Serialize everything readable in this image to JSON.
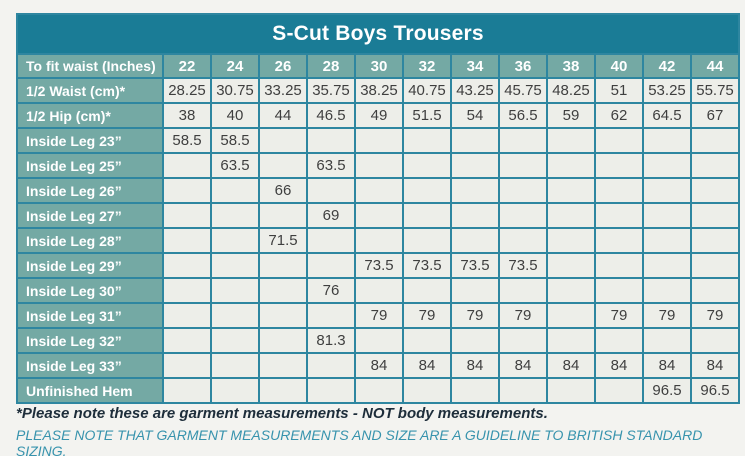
{
  "title": "S-Cut Boys Trousers",
  "table": {
    "header_label": "To fit waist (Inches)",
    "sizes": [
      "22",
      "24",
      "26",
      "28",
      "30",
      "32",
      "34",
      "36",
      "38",
      "40",
      "42",
      "44"
    ],
    "rows": [
      {
        "label": "1/2 Waist (cm)*",
        "values": [
          "28.25",
          "30.75",
          "33.25",
          "35.75",
          "38.25",
          "40.75",
          "43.25",
          "45.75",
          "48.25",
          "51",
          "53.25",
          "55.75"
        ]
      },
      {
        "label": "1/2 Hip (cm)*",
        "values": [
          "38",
          "40",
          "44",
          "46.5",
          "49",
          "51.5",
          "54",
          "56.5",
          "59",
          "62",
          "64.5",
          "67"
        ]
      },
      {
        "label": "Inside Leg 23”",
        "values": [
          "58.5",
          "58.5",
          "",
          "",
          "",
          "",
          "",
          "",
          "",
          "",
          "",
          ""
        ]
      },
      {
        "label": "Inside Leg 25”",
        "values": [
          "",
          "63.5",
          "",
          "63.5",
          "",
          "",
          "",
          "",
          "",
          "",
          "",
          ""
        ]
      },
      {
        "label": "Inside Leg 26”",
        "values": [
          "",
          "",
          "66",
          "",
          "",
          "",
          "",
          "",
          "",
          "",
          "",
          ""
        ]
      },
      {
        "label": "Inside Leg 27”",
        "values": [
          "",
          "",
          "",
          "69",
          "",
          "",
          "",
          "",
          "",
          "",
          "",
          ""
        ]
      },
      {
        "label": "Inside Leg 28”",
        "values": [
          "",
          "",
          "71.5",
          "",
          "",
          "",
          "",
          "",
          "",
          "",
          "",
          ""
        ]
      },
      {
        "label": "Inside Leg 29”",
        "values": [
          "",
          "",
          "",
          "",
          "73.5",
          "73.5",
          "73.5",
          "73.5",
          "",
          "",
          "",
          ""
        ]
      },
      {
        "label": "Inside Leg 30”",
        "values": [
          "",
          "",
          "",
          "76",
          "",
          "",
          "",
          "",
          "",
          "",
          "",
          ""
        ]
      },
      {
        "label": "Inside Leg 31”",
        "values": [
          "",
          "",
          "",
          "",
          "79",
          "79",
          "79",
          "79",
          "",
          "79",
          "79",
          "79"
        ]
      },
      {
        "label": "Inside Leg 32”",
        "values": [
          "",
          "",
          "",
          "81.3",
          "",
          "",
          "",
          "",
          "",
          "",
          "",
          ""
        ]
      },
      {
        "label": "Inside Leg 33”",
        "values": [
          "",
          "",
          "",
          "",
          "84",
          "84",
          "84",
          "84",
          "84",
          "84",
          "84",
          "84"
        ]
      },
      {
        "label": "Unfinished Hem",
        "values": [
          "",
          "",
          "",
          "",
          "",
          "",
          "",
          "",
          "",
          "",
          "96.5",
          "96.5"
        ]
      }
    ]
  },
  "footnotes": {
    "garment_note": "*Please note these are garment measurements - NOT body measurements.",
    "guideline_note": "PLEASE NOTE THAT GARMENT MEASUREMENTS AND SIZE ARE A GUIDELINE TO BRITISH STANDARD SIZING."
  },
  "colors": {
    "title_bar": "#1a7c96",
    "label_background": "#74a9a4",
    "cell_background": "#edeee9",
    "grid_border": "#2e86a0",
    "note_dark": "#1d2d3a",
    "note_teal": "#3793ad",
    "page_background": "#f3f3f0"
  }
}
